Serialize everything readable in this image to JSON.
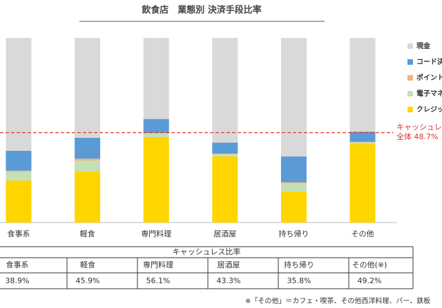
{
  "chart_data": {
    "type": "stacked-bar",
    "title": "飲食店　業態別 決済手段比率",
    "categories": [
      "食事系",
      "軽食",
      "専門料理",
      "居酒屋",
      "持ち帰り",
      "その他"
    ],
    "series": [
      {
        "name": "クレジッ",
        "color": "#ffd500",
        "values": [
          22.8,
          27.6,
          46.3,
          35.8,
          16.8,
          42.5
        ]
      },
      {
        "name": "電子マネ",
        "color": "#c5e0b4",
        "values": [
          4.8,
          6.0,
          2.0,
          1.3,
          4.5,
          1.0
        ]
      },
      {
        "name": "ポイント",
        "color": "#f4b183",
        "values": [
          0.5,
          1.0,
          0.3,
          0.2,
          0.5,
          0.2
        ]
      },
      {
        "name": "コード決",
        "color": "#5b9bd5",
        "values": [
          10.8,
          11.3,
          7.5,
          6.0,
          14.0,
          5.5
        ]
      },
      {
        "name": "現金",
        "color": "#d9d9d9",
        "values": [
          61.1,
          54.1,
          43.9,
          56.7,
          64.2,
          50.8
        ]
      }
    ],
    "ylim": [
      0,
      100
    ],
    "reference": {
      "value": 48.7,
      "color": "#e03030",
      "labels": [
        "キャッシュレ",
        "全体 48.7%"
      ]
    }
  },
  "table": {
    "title": "キャッシュレス比率",
    "header": [
      "食事系",
      "軽食",
      "専門料理",
      "居酒屋",
      "持ち帰り",
      "その他(※)"
    ],
    "row": [
      "38.9%",
      "45.9%",
      "56.1%",
      "43.3%",
      "35.8%",
      "49.2%"
    ]
  },
  "footnote": "※「その他」＝カフェ・喫茶、その他西洋料理、バー、鉄板"
}
